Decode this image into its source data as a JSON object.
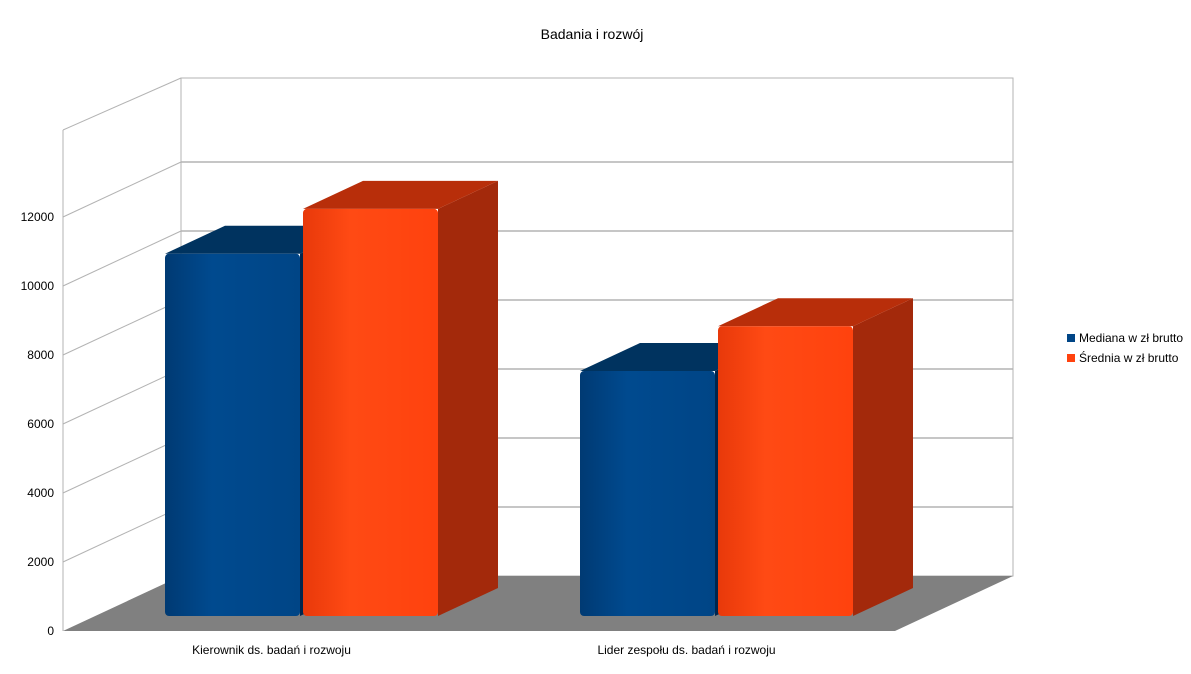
{
  "chart_data": {
    "type": "bar",
    "style": "3d-clustered-column",
    "title": "Badania i rozwój",
    "xlabel": "",
    "ylabel": "",
    "ylim": [
      0,
      12000
    ],
    "yticks": [
      0,
      2000,
      4000,
      6000,
      8000,
      10000,
      12000
    ],
    "ytick_labels": [
      "0",
      "2000",
      "4000",
      "6000",
      "8000",
      "10000",
      "12000"
    ],
    "categories": [
      "Kierownik ds. badań i rozwoju",
      "Lider zespołu ds. badań i rozwoju"
    ],
    "series": [
      {
        "name": "Mediana w zł brutto",
        "color": "#004586",
        "values": [
          10500,
          7100
        ]
      },
      {
        "name": "Średnia w zł brutto",
        "color": "#ff420e",
        "values": [
          11800,
          8400
        ]
      }
    ],
    "grid": true,
    "legend_position": "right",
    "floor_color": "#808080"
  }
}
